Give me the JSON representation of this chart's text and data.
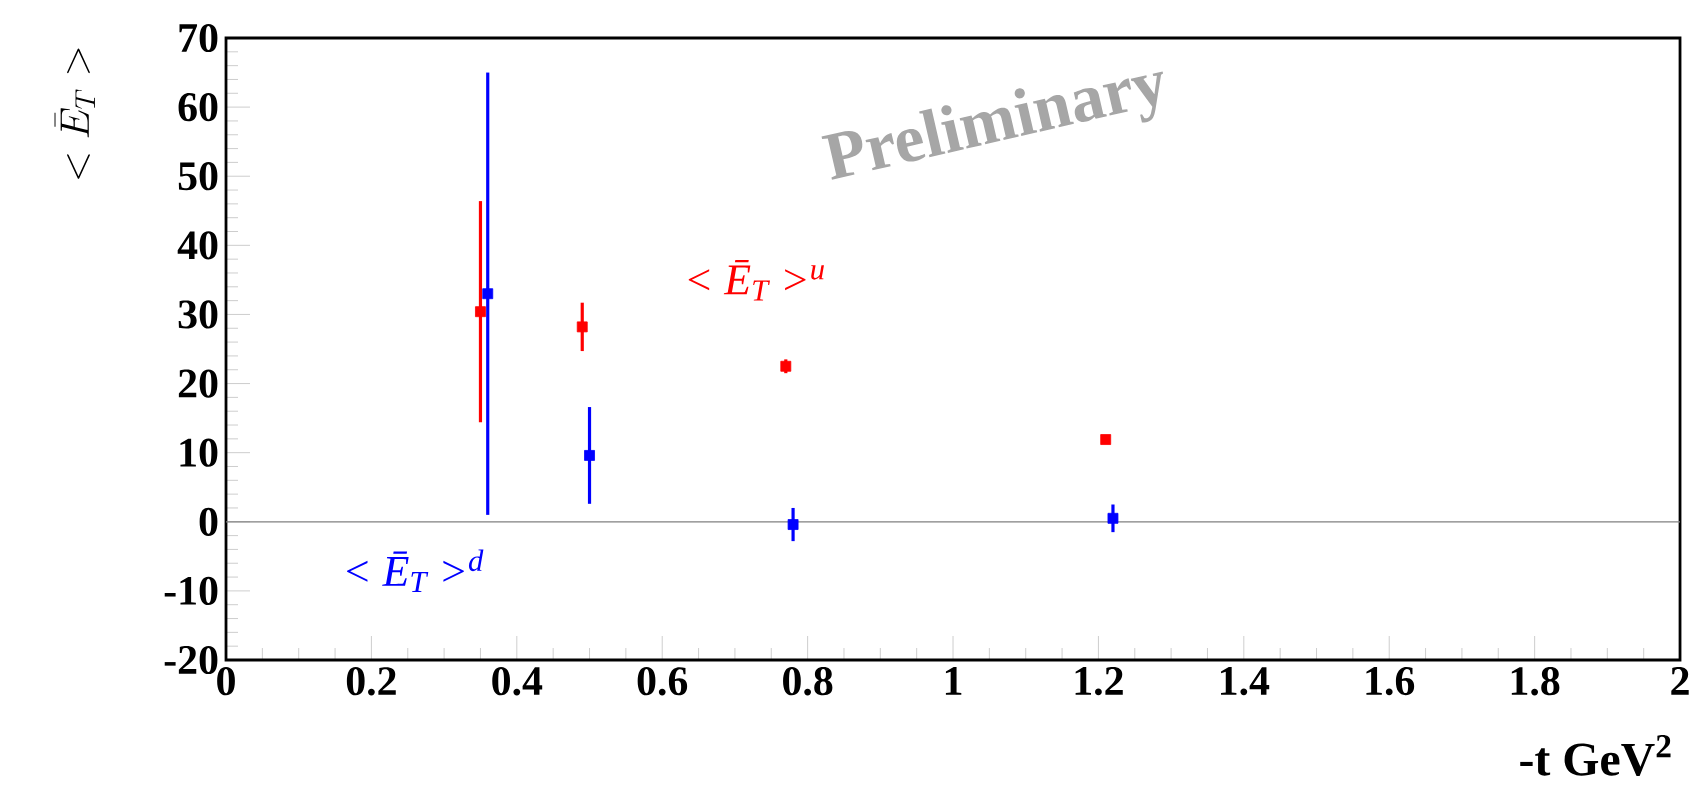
{
  "chart_data": {
    "type": "scatter",
    "xlabel": "-t GeV$^{2}$",
    "ylabel": "< \\bar{E}_T >",
    "xlim": [
      0,
      2
    ],
    "xticks": [
      0,
      0.2,
      0.4,
      0.6,
      0.8,
      1,
      1.2,
      1.4,
      1.6,
      1.8,
      2
    ],
    "ylim": [
      -20,
      70
    ],
    "yticks": [
      -20,
      -10,
      0,
      10,
      20,
      30,
      40,
      50,
      60,
      70
    ],
    "marker": "square",
    "grid": false,
    "legend": false,
    "series": [
      {
        "name": "< Ē$_{T}$ >$^{u}$",
        "color": "#ff0000",
        "x": [
          0.35,
          0.49,
          0.77,
          1.21
        ],
        "values": [
          30.4,
          28.2,
          22.5,
          11.9
        ],
        "errors": [
          16,
          3.5,
          1,
          0.5
        ]
      },
      {
        "name": "< Ē$_{T}$ >$^{d}$",
        "color": "#0000ff",
        "x": [
          0.36,
          0.5,
          0.78,
          1.22
        ],
        "values": [
          33,
          9.6,
          -0.4,
          0.5
        ],
        "errors": [
          32,
          7,
          2.4,
          2
        ]
      }
    ],
    "ref_lines": [
      {
        "axis": "y",
        "value": 0,
        "color": "#808080"
      }
    ],
    "annotations": [
      "Preliminary"
    ]
  }
}
